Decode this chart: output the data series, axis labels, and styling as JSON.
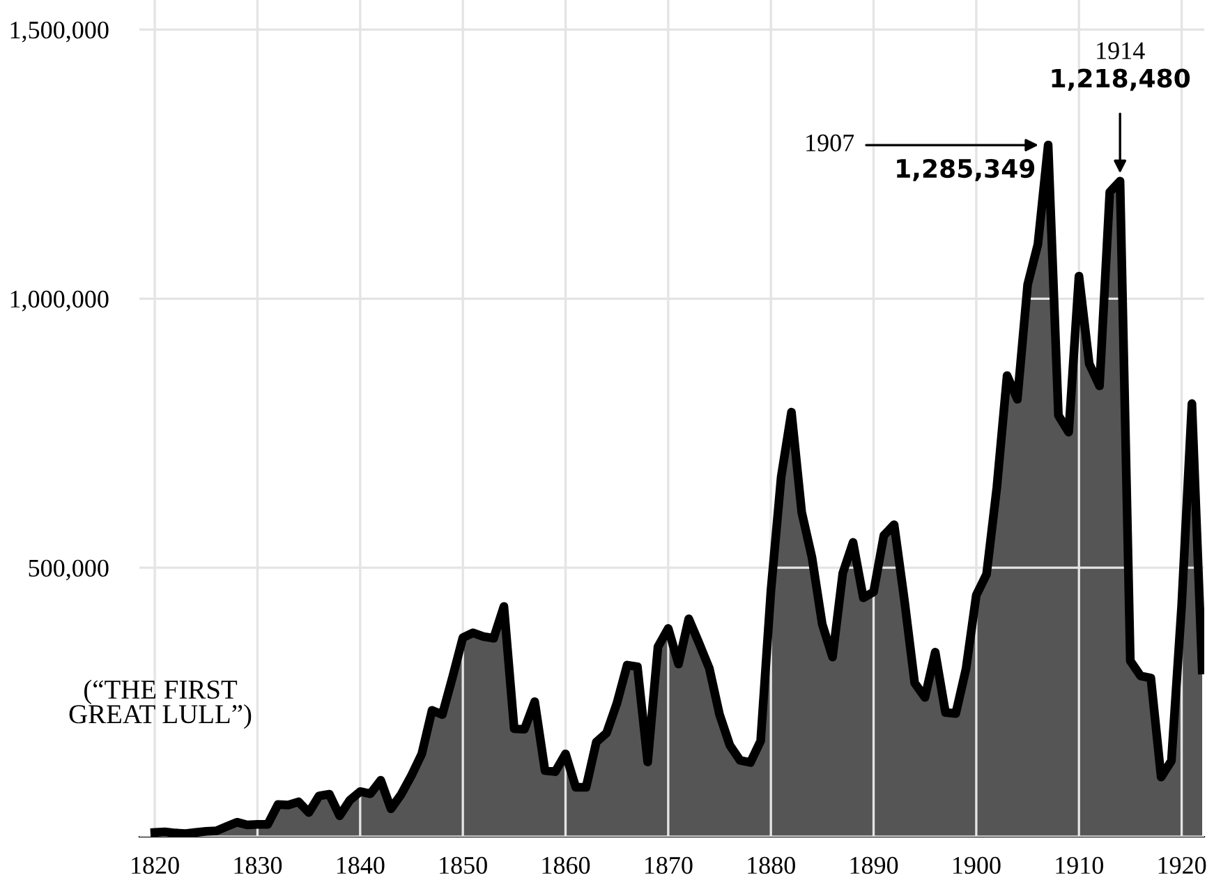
{
  "chart_data": {
    "type": "area",
    "x": [
      1820,
      1821,
      1822,
      1823,
      1824,
      1825,
      1826,
      1827,
      1828,
      1829,
      1830,
      1831,
      1832,
      1833,
      1834,
      1835,
      1836,
      1837,
      1838,
      1839,
      1840,
      1841,
      1842,
      1843,
      1844,
      1845,
      1846,
      1847,
      1848,
      1849,
      1850,
      1851,
      1852,
      1853,
      1854,
      1855,
      1856,
      1857,
      1858,
      1859,
      1860,
      1861,
      1862,
      1863,
      1864,
      1865,
      1866,
      1867,
      1868,
      1869,
      1870,
      1871,
      1872,
      1873,
      1874,
      1875,
      1876,
      1877,
      1878,
      1879,
      1880,
      1881,
      1882,
      1883,
      1884,
      1885,
      1886,
      1887,
      1888,
      1889,
      1890,
      1891,
      1892,
      1893,
      1894,
      1895,
      1896,
      1897,
      1898,
      1899,
      1900,
      1901,
      1902,
      1903,
      1904,
      1905,
      1906,
      1907,
      1908,
      1909,
      1910,
      1911,
      1912,
      1913,
      1914,
      1915,
      1916,
      1917,
      1918,
      1919,
      1920,
      1921,
      1922
    ],
    "series": [
      {
        "color": "#555555",
        "values": [
          8000,
          9000,
          7000,
          6000,
          8000,
          10000,
          11000,
          19000,
          27000,
          22000,
          23000,
          23000,
          60000,
          59000,
          65000,
          45000,
          76000,
          79000,
          39000,
          68000,
          84000,
          80000,
          105000,
          52000,
          79000,
          114000,
          154000,
          235000,
          227000,
          297000,
          370000,
          379000,
          372000,
          369000,
          428000,
          201000,
          200000,
          251000,
          123000,
          121000,
          154000,
          92000,
          92000,
          176000,
          193000,
          248000,
          319000,
          316000,
          139000,
          353000,
          387000,
          321000,
          405000,
          360000,
          313000,
          227000,
          170000,
          142000,
          138000,
          178000,
          457000,
          669000,
          789000,
          603000,
          519000,
          395000,
          334000,
          490000,
          547000,
          444000,
          455000,
          560000,
          580000,
          440000,
          286000,
          259000,
          343000,
          231000,
          229000,
          312000,
          449000,
          488000,
          649000,
          857000,
          813000,
          1026000,
          1101000,
          1285349,
          783000,
          752000,
          1042000,
          879000,
          838000,
          1198000,
          1218480,
          327000,
          299000,
          295000,
          111000,
          141000,
          430000,
          805000,
          310000
        ]
      }
    ],
    "xlim": [
      1818.5,
      1922.2
    ],
    "ylim": [
      0,
      1555000
    ],
    "xticks": [
      1820,
      1830,
      1840,
      1850,
      1860,
      1870,
      1880,
      1890,
      1900,
      1910,
      1920
    ],
    "yticks": [
      {
        "value": 0,
        "label": null
      },
      {
        "value": 500000,
        "label": "500,000"
      },
      {
        "value": 1000000,
        "label": "1,000,000"
      },
      {
        "value": 1500000,
        "label": "1,500,000"
      }
    ],
    "grid": true,
    "annotations": [
      "1914",
      {
        "text": "1,218,480",
        "x": 1914,
        "y": 1218480
      },
      {
        "text": "1907",
        "x": 1907,
        "y": 1285349
      },
      "1,285,349",
      "(“THE FIRST\nGREAT LULL”)"
    ]
  }
}
